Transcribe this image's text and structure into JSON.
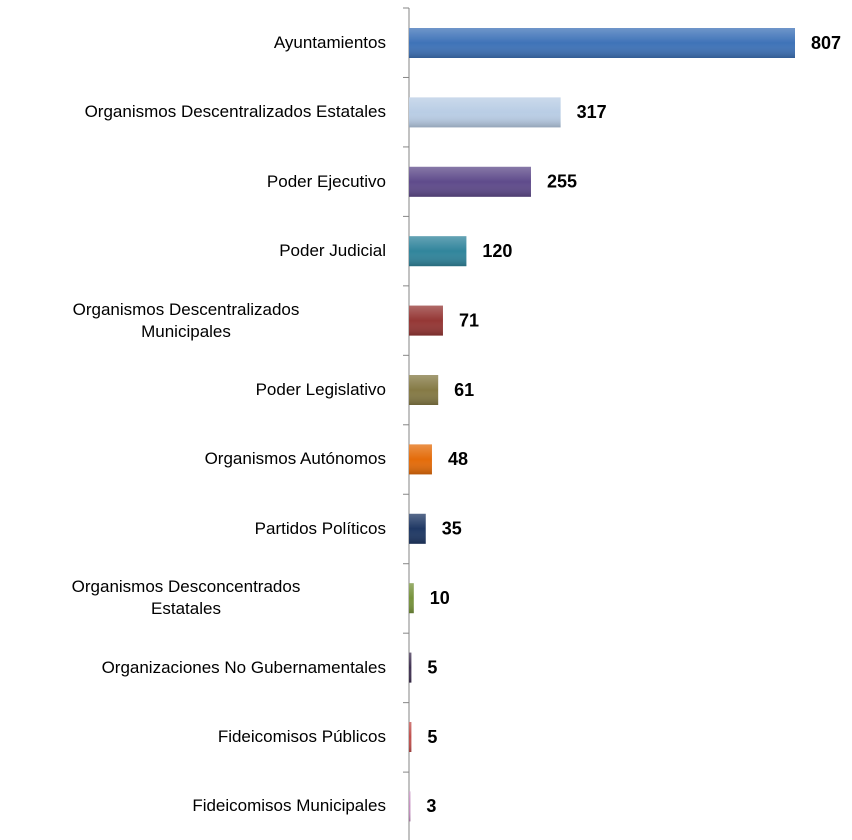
{
  "chart_data": {
    "type": "bar",
    "orientation": "horizontal",
    "categories": [
      "Ayuntamientos",
      "Organismos Descentralizados Estatales",
      "Poder Ejecutivo",
      "Poder Judicial",
      "Organismos Descentralizados\nMunicipales",
      "Poder Legislativo",
      "Organismos Autónomos",
      "Partidos Políticos",
      "Organismos Desconcentrados\nEstatales",
      "Organizaciones No Gubernamentales",
      "Fideicomisos Públicos",
      "Fideicomisos Municipales"
    ],
    "values": [
      807,
      317,
      255,
      120,
      71,
      61,
      48,
      35,
      10,
      5,
      5,
      3
    ],
    "colors": [
      "#3f73b8",
      "#b9cde5",
      "#5f4b8b",
      "#31859c",
      "#953735",
      "#857a45",
      "#e46c0a",
      "#1f3864",
      "#77933c",
      "#403152",
      "#c0504d",
      "#c58ec0"
    ]
  }
}
